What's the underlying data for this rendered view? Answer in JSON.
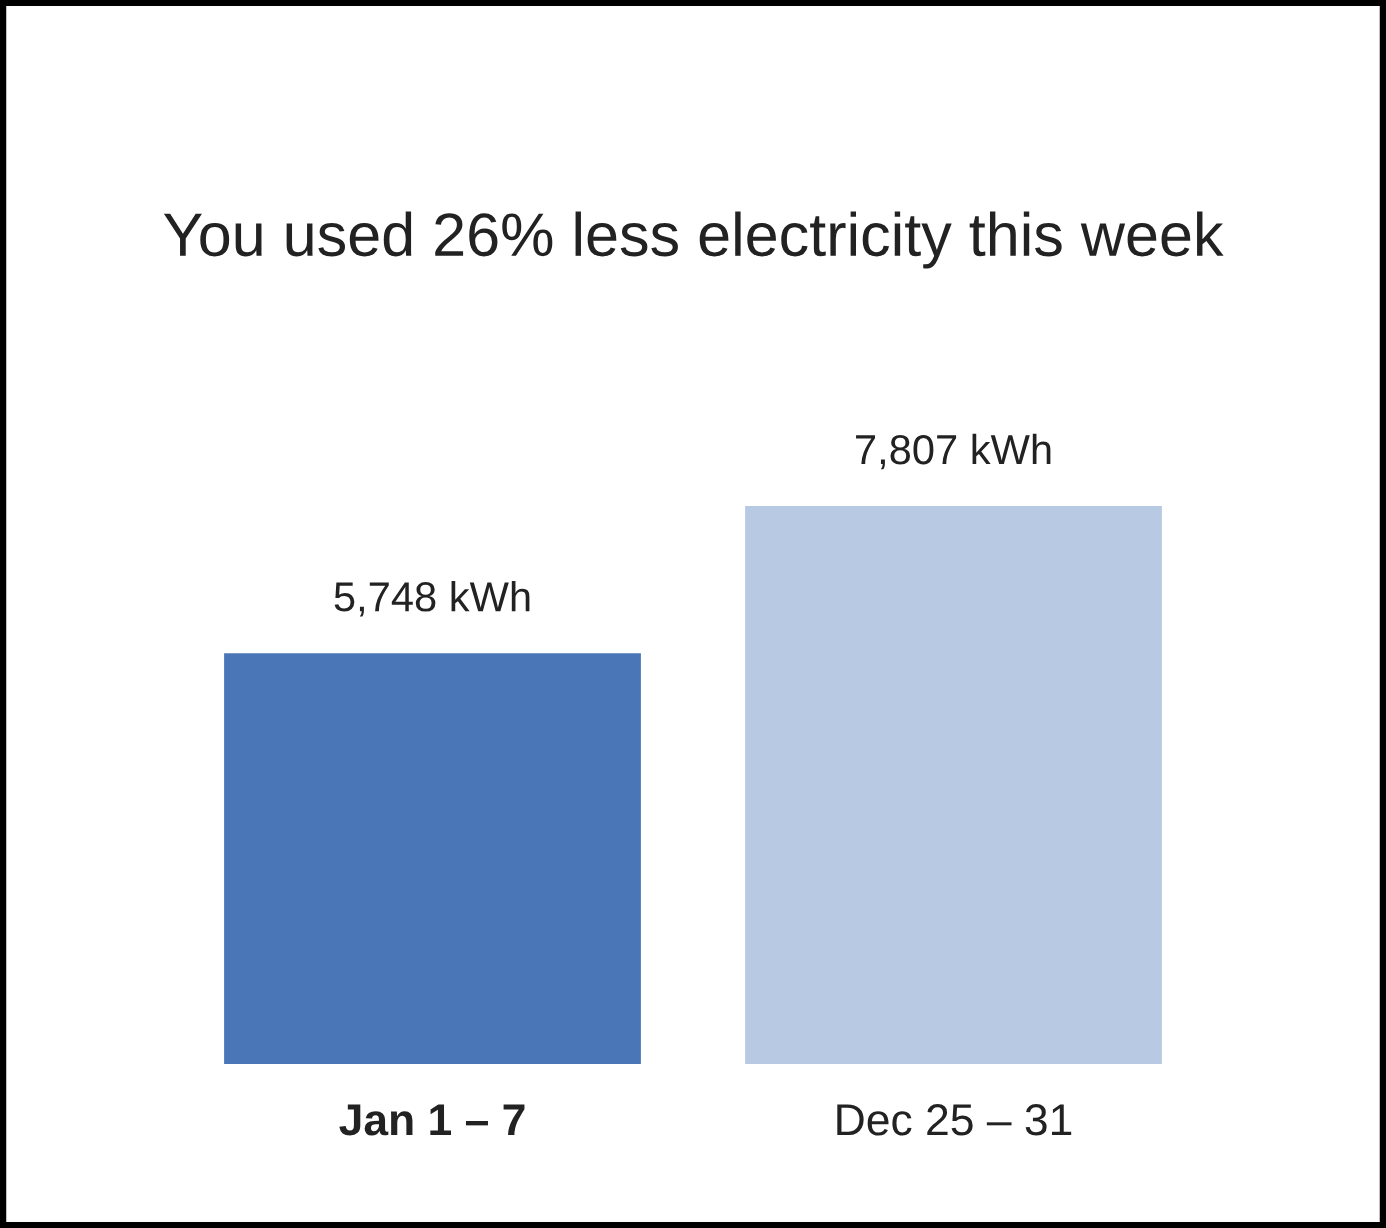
{
  "chart_data": {
    "type": "bar",
    "title": "You used 26% less electricity this week",
    "categories": [
      "Jan 1 – 7",
      "Dec 25 – 31"
    ],
    "values": [
      5748,
      7807
    ],
    "colors": [
      "#4a76b8",
      "#b8c9e4"
    ],
    "value_labels": [
      "5,748 kWh",
      "7,807 kWh"
    ]
  }
}
